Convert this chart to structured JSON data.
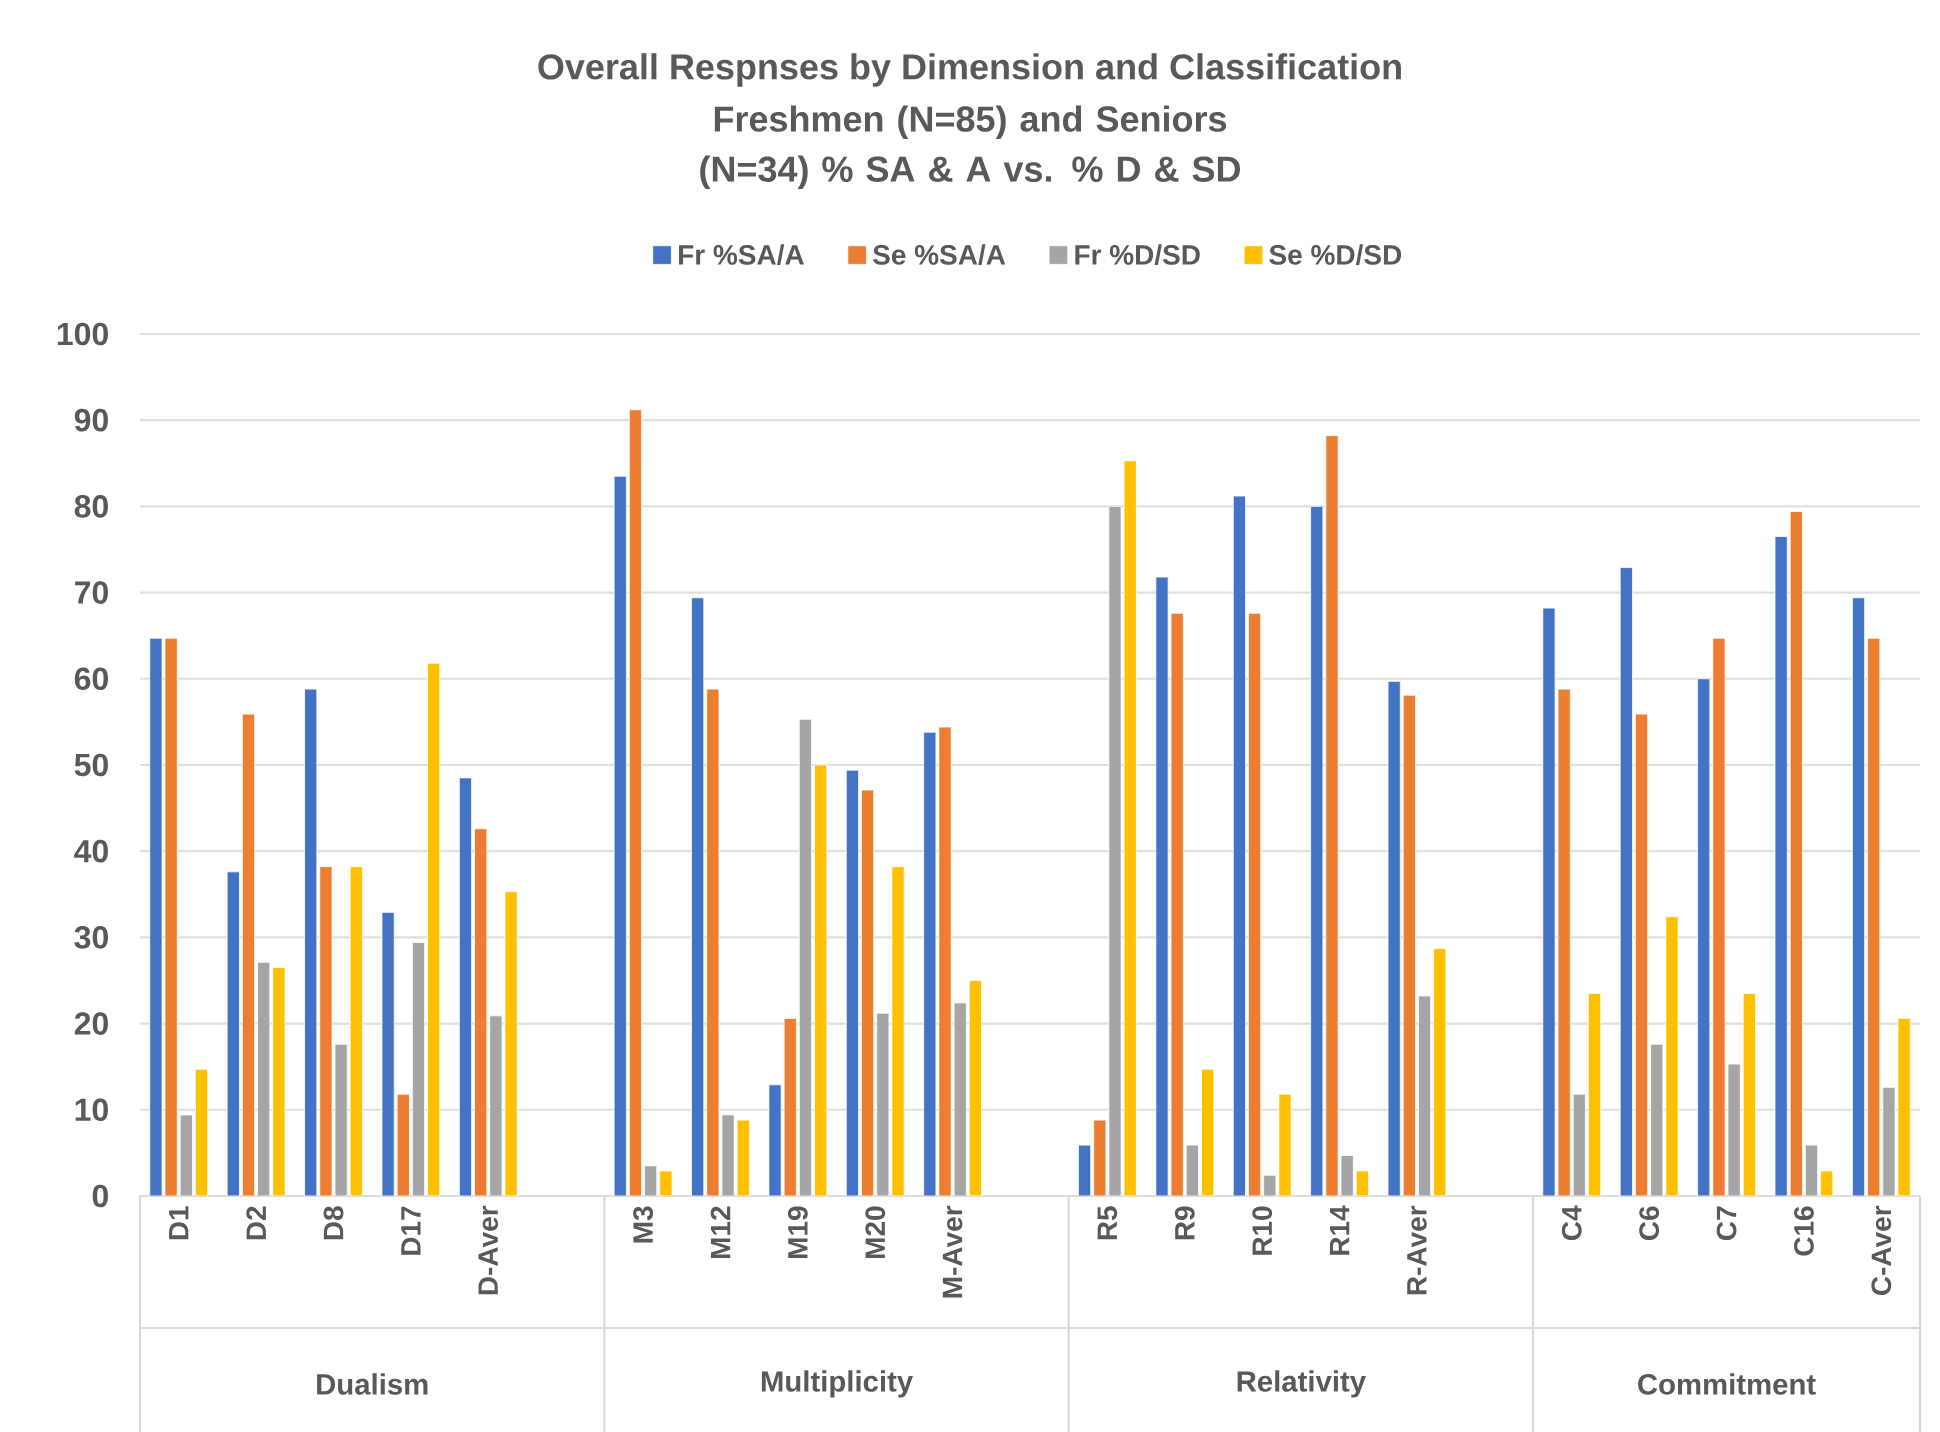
{
  "chart_data": {
    "type": "bar",
    "title": "Overall Respnses by Dimension and Classification",
    "subtitle": "Freshmen (N=85) and Seniors (N=34) % SA & A vs. % D & SD",
    "categories": [
      "D1",
      "D2",
      "D8",
      "D17",
      "D-Aver",
      null,
      "M3",
      "M12",
      "M19",
      "M20",
      "M-Aver",
      null,
      "R5",
      "R9",
      "R10",
      "R14",
      "R-Aver",
      null,
      "C4",
      "C6",
      "C7",
      "C16",
      "C-Aver"
    ],
    "series": [
      {
        "name": "Fr %SA/A",
        "color": "#4472c4",
        "values": [
          64.7,
          37.6,
          58.8,
          32.9,
          48.5,
          null,
          83.5,
          69.4,
          12.9,
          49.4,
          53.8,
          null,
          5.9,
          71.8,
          81.2,
          80.0,
          59.7,
          null,
          68.2,
          72.9,
          60.0,
          76.5,
          69.4
        ]
      },
      {
        "name": "Se %SA/A",
        "color": "#ed7d31",
        "values": [
          64.7,
          55.9,
          38.2,
          11.8,
          42.6,
          null,
          91.2,
          58.8,
          20.6,
          47.1,
          54.4,
          null,
          8.8,
          67.6,
          67.6,
          88.2,
          58.1,
          null,
          58.8,
          55.9,
          64.7,
          79.4,
          64.7
        ]
      },
      {
        "name": "Fr %D/SD",
        "color": "#a5a5a5",
        "values": [
          9.4,
          27.1,
          17.6,
          29.4,
          20.9,
          null,
          3.5,
          9.4,
          55.3,
          21.2,
          22.4,
          null,
          80.0,
          5.9,
          2.4,
          4.7,
          23.2,
          null,
          11.8,
          17.6,
          15.3,
          5.9,
          12.6
        ]
      },
      {
        "name": "Se %D/SD",
        "color": "#ffc000",
        "values": [
          14.7,
          26.5,
          38.2,
          61.8,
          35.3,
          null,
          2.9,
          8.8,
          50.0,
          38.2,
          25.0,
          null,
          85.3,
          14.7,
          11.8,
          2.9,
          28.7,
          null,
          23.5,
          32.4,
          23.5,
          2.9,
          20.6
        ]
      }
    ],
    "ylim": [
      0,
      100
    ],
    "yticks": [
      0,
      10,
      20,
      30,
      40,
      50,
      60,
      70,
      80,
      90,
      100
    ],
    "grid": "y",
    "legend": "top",
    "annotations": [
      "Dualism",
      "Multiplicity",
      "Relativity",
      "Commitment"
    ]
  }
}
